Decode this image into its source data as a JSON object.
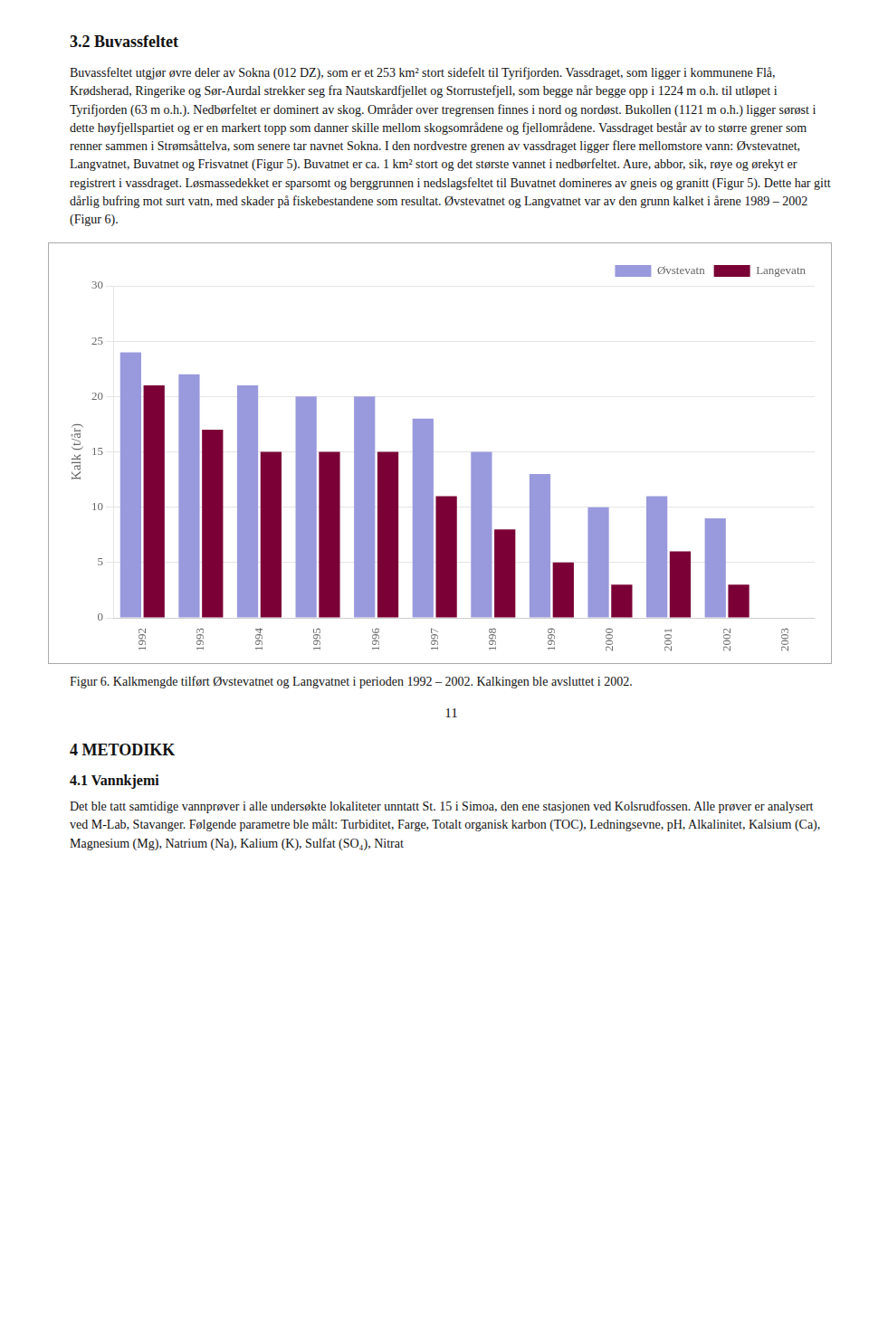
{
  "heading": "3.2 Buvassfeltet",
  "paragraph": "Buvassfeltet utgjør øvre deler av Sokna (012 DZ), som er et 253 km² stort sidefelt til Tyrifjorden. Vassdraget, som ligger i kommunene Flå, Krødsherad, Ringerike og Sør-Aurdal strekker seg fra Nautskardfjellet og Storrustefjell, som begge når begge opp i 1224 m o.h. til utløpet i Tyrifjorden (63 m o.h.). Nedbørfeltet er dominert av skog. Områder over tregrensen finnes i nord og nordøst. Bukollen (1121 m o.h.) ligger sørøst i dette høyfjellspartiet og er en markert topp som danner skille mellom skogsområdene og fjellområdene. Vassdraget består av to større grener som renner sammen i Strømsåttelva, som senere tar navnet Sokna. I den nordvestre grenen av vassdraget ligger flere mellomstore vann: Øvstevatnet, Langvatnet, Buvatnet og Frisvatnet (Figur 5). Buvatnet er ca. 1 km² stort og det største vannet i nedbørfeltet. Aure, abbor, sik, røye og ørekyt er registrert i vassdraget. Løsmassedekket er sparsomt og berggrunnen i nedslagsfeltet til Buvatnet domineres av gneis og granitt (Figur 5). Dette har gitt dårlig bufring mot surt vatn, med skader på fiskebestandene som resultat. Øvstevatnet og Langvatnet var av den grunn kalket i årene 1989 – 2002 (Figur 6).",
  "chart_data": {
    "type": "bar",
    "categories": [
      "1992",
      "1993",
      "1994",
      "1995",
      "1996",
      "1997",
      "1998",
      "1999",
      "2000",
      "2001",
      "2002",
      "2003"
    ],
    "series": [
      {
        "name": "Øvstevatn",
        "color": "#9999dd",
        "values": [
          24,
          22,
          21,
          20,
          20,
          18,
          15,
          13,
          10,
          11,
          9,
          0
        ]
      },
      {
        "name": "Langevatn",
        "color": "#7a0035",
        "values": [
          21,
          17,
          15,
          15,
          15,
          11,
          8,
          5,
          3,
          6,
          3,
          0
        ]
      }
    ],
    "ylabel": "Kalk (t/år)",
    "ylim": [
      0,
      30
    ],
    "yticks": [
      0,
      5,
      10,
      15,
      20,
      25,
      30
    ],
    "grid": true,
    "legend": "upper right"
  },
  "caption": "Figur 6.  Kalkmengde tilført Øvstevatnet og Langvatnet i perioden 1992 – 2002. Kalkingen ble avsluttet i 2002.",
  "page_number": "11",
  "section_title": "4 METODIKK",
  "section_subtitle": "4.1 Vannkjemi",
  "section_text": "Det ble tatt samtidige vannprøver i alle undersøkte lokaliteter unntatt St. 15 i Simoa, den ene stasjonen ved Kolsrudfossen. Alle prøver er analysert ved M-Lab, Stavanger. Følgende parametre ble målt: Turbiditet, Farge, Totalt organisk karbon (TOC), Ledningsevne, pH, Alkalinitet, Kalsium (Ca), Magnesium (Mg), Natrium (Na), Kalium (K), Sulfat (SO₄), Nitrat"
}
